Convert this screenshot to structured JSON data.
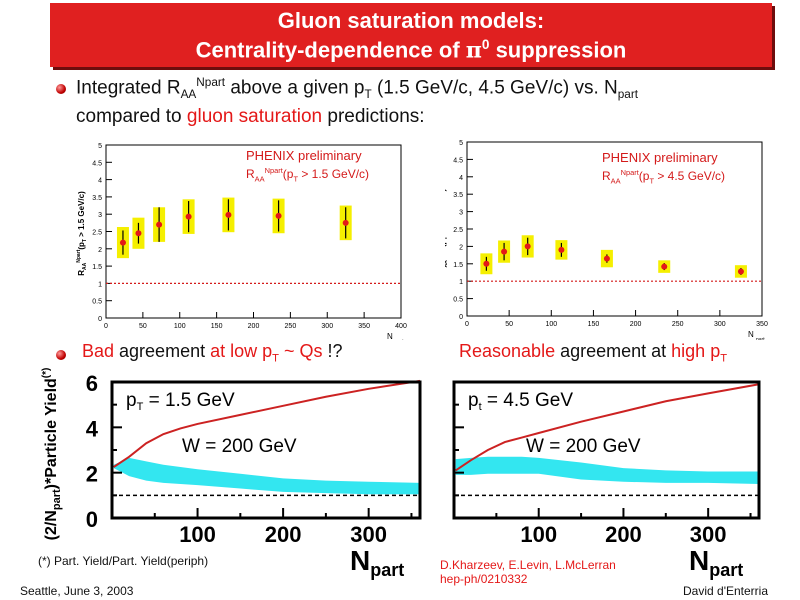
{
  "slide": {
    "title_line1": "Gluon saturation models:",
    "title_line2_a": "Centrality-dependence of ",
    "title_line2_pi": "π",
    "title_line2_sup": "0",
    "title_line2_b": " suppression"
  },
  "bullet1": {
    "a": "Integrated R",
    "sub_aa": "AA",
    "sup_npart": "Npart",
    "b": " above a given p",
    "sub_t": "T",
    "c": " (1.5 GeV/c, 4.5 GeV/c) vs. N",
    "sub_part": "part",
    "line2_a": "compared to ",
    "line2_red": "gluon saturation",
    "line2_b": " predictions:"
  },
  "panel_labels": {
    "left_prelim": "PHENIX preliminary",
    "left_raa": "R",
    "left_raa_sub": "AA",
    "left_raa_sup": "Npart",
    "left_raa_rest": "(p",
    "left_raa_sub_t": "T",
    "left_raa_end": " > 1.5 GeV/c)",
    "right_prelim": "PHENIX preliminary",
    "right_raa": "R",
    "right_raa_sub": "AA",
    "right_raa_sup": "Npart",
    "right_raa_rest": "(p",
    "right_raa_sub_t": "T",
    "right_raa_end": " > 4.5 GeV/c)"
  },
  "bullet2": {
    "bad": "Bad",
    "agreement": " agreement ",
    "at_low": "at low p",
    "sub_t": "T",
    "qs": " ~ Qs",
    "rest": " !?",
    "reasonable": "Reasonable",
    "agreement2": " agreement at ",
    "high": "high p",
    "sub_t2": "T"
  },
  "footnotes": {
    "part_yield": "(*) Part. Yield/Part. Yield(periph)",
    "refs1": "D.Kharzeev, E.Levin, L.McLerran",
    "refs2": "hep-ph/0210332",
    "location": "Seattle, June  3, 2003",
    "author": "David d'Enterria"
  },
  "colors": {
    "title_bg": "#e02020",
    "accent_red": "#e41818",
    "band_yellow": "#f5ef00",
    "band_cyan": "#33e6f0",
    "curve_red": "#cc2222"
  },
  "chart_data": [
    {
      "type": "scatter",
      "ylabel_parts": [
        "R",
        "AA",
        "N",
        "part",
        "(p",
        "T",
        " > 1.5 GeV/c)"
      ],
      "xlabel": "N",
      "xlabel_sub": "part",
      "xlim": [
        0,
        400
      ],
      "ylim": [
        0,
        5
      ],
      "x_ticks": [
        "0",
        "50",
        "100",
        "150",
        "200",
        "250",
        "300",
        "350",
        "400"
      ],
      "y_ticks": [
        "0",
        "0.5",
        "1",
        "1.5",
        "2",
        "2.5",
        "3",
        "3.5",
        "4",
        "4.5",
        "5"
      ],
      "reference_line": 1,
      "points": [
        {
          "x": 23,
          "y": 2.18,
          "err": 0.35,
          "sys": 0.45
        },
        {
          "x": 44,
          "y": 2.45,
          "err": 0.3,
          "sys": 0.45
        },
        {
          "x": 72,
          "y": 2.7,
          "err": 0.5,
          "sys": 0.5
        },
        {
          "x": 112,
          "y": 2.93,
          "err": 0.45,
          "sys": 0.5
        },
        {
          "x": 166,
          "y": 2.98,
          "err": 0.45,
          "sys": 0.5
        },
        {
          "x": 234,
          "y": 2.95,
          "err": 0.45,
          "sys": 0.5
        },
        {
          "x": 325,
          "y": 2.75,
          "err": 0.45,
          "sys": 0.5
        }
      ]
    },
    {
      "type": "scatter",
      "ylabel_parts": [
        "R",
        "AA",
        "N",
        "part",
        "(p",
        "T",
        " > 4.5 GeV/c)"
      ],
      "xlabel": "N",
      "xlabel_sub": "part",
      "xlim": [
        0,
        350
      ],
      "ylim": [
        0,
        5
      ],
      "x_ticks": [
        "0",
        "50",
        "100",
        "150",
        "200",
        "250",
        "300",
        "350"
      ],
      "y_ticks": [
        "0",
        "0.5",
        "1",
        "1.5",
        "2",
        "2.5",
        "3",
        "3.5",
        "4",
        "4.5",
        "5"
      ],
      "reference_line": 1,
      "points": [
        {
          "x": 23,
          "y": 1.5,
          "err": 0.2,
          "sys": 0.3
        },
        {
          "x": 44,
          "y": 1.85,
          "err": 0.25,
          "sys": 0.32
        },
        {
          "x": 72,
          "y": 2.0,
          "err": 0.25,
          "sys": 0.32
        },
        {
          "x": 112,
          "y": 1.9,
          "err": 0.2,
          "sys": 0.28
        },
        {
          "x": 166,
          "y": 1.65,
          "err": 0.12,
          "sys": 0.25
        },
        {
          "x": 234,
          "y": 1.42,
          "err": 0.1,
          "sys": 0.18
        },
        {
          "x": 325,
          "y": 1.28,
          "err": 0.1,
          "sys": 0.18
        }
      ]
    },
    {
      "type": "line",
      "ylabel": "(2/N",
      "ylabel_sub": "part",
      "ylabel_end": ")*Particle Yield",
      "ylabel_sup": "(*)",
      "annotation_pt": "p",
      "annotation_pt_sub": "T",
      "annotation_pt_val": " = 1.5 GeV",
      "annotation_w": "W = 200 GeV",
      "xlabel": "N",
      "xlabel_sub": "part",
      "xlim": [
        0,
        360
      ],
      "ylim": [
        0,
        6
      ],
      "x_ticks": [
        "100",
        "200",
        "300"
      ],
      "y_ticks": [
        "0",
        "2",
        "4",
        "6"
      ],
      "reference_line": 1,
      "curve": [
        [
          2,
          2.25
        ],
        [
          20,
          2.7
        ],
        [
          40,
          3.3
        ],
        [
          60,
          3.7
        ],
        [
          80,
          3.95
        ],
        [
          100,
          4.15
        ],
        [
          150,
          4.55
        ],
        [
          200,
          4.95
        ],
        [
          250,
          5.35
        ],
        [
          300,
          5.7
        ],
        [
          360,
          6.05
        ]
      ],
      "band": [
        [
          2,
          2.2,
          2.35
        ],
        [
          20,
          1.85,
          2.65
        ],
        [
          40,
          1.65,
          2.5
        ],
        [
          60,
          1.55,
          2.35
        ],
        [
          80,
          1.5,
          2.25
        ],
        [
          100,
          1.45,
          2.15
        ],
        [
          150,
          1.3,
          1.95
        ],
        [
          200,
          1.15,
          1.75
        ],
        [
          250,
          1.1,
          1.65
        ],
        [
          300,
          1.05,
          1.6
        ],
        [
          360,
          1.05,
          1.55
        ]
      ]
    },
    {
      "type": "line",
      "annotation_pt": "p",
      "annotation_pt_sub": "t",
      "annotation_pt_val": " = 4.5 GeV",
      "annotation_w": "W = 200 GeV",
      "xlabel": "N",
      "xlabel_sub": "part",
      "xlim": [
        0,
        360
      ],
      "ylim": [
        0,
        6
      ],
      "x_ticks": [
        "100",
        "200",
        "300"
      ],
      "y_ticks": [],
      "reference_line": 1,
      "curve": [
        [
          2,
          2.1
        ],
        [
          20,
          2.55
        ],
        [
          40,
          3.0
        ],
        [
          60,
          3.35
        ],
        [
          80,
          3.55
        ],
        [
          100,
          3.75
        ],
        [
          150,
          4.25
        ],
        [
          200,
          4.7
        ],
        [
          250,
          5.15
        ],
        [
          300,
          5.5
        ],
        [
          360,
          5.9
        ]
      ],
      "band": [
        [
          2,
          1.9,
          2.6
        ],
        [
          20,
          1.9,
          2.65
        ],
        [
          40,
          1.95,
          2.7
        ],
        [
          60,
          1.95,
          2.7
        ],
        [
          80,
          1.95,
          2.7
        ],
        [
          100,
          1.95,
          2.65
        ],
        [
          150,
          1.7,
          2.45
        ],
        [
          200,
          1.6,
          2.2
        ],
        [
          250,
          1.55,
          2.1
        ],
        [
          300,
          1.55,
          2.05
        ],
        [
          360,
          1.5,
          2.05
        ]
      ]
    }
  ]
}
